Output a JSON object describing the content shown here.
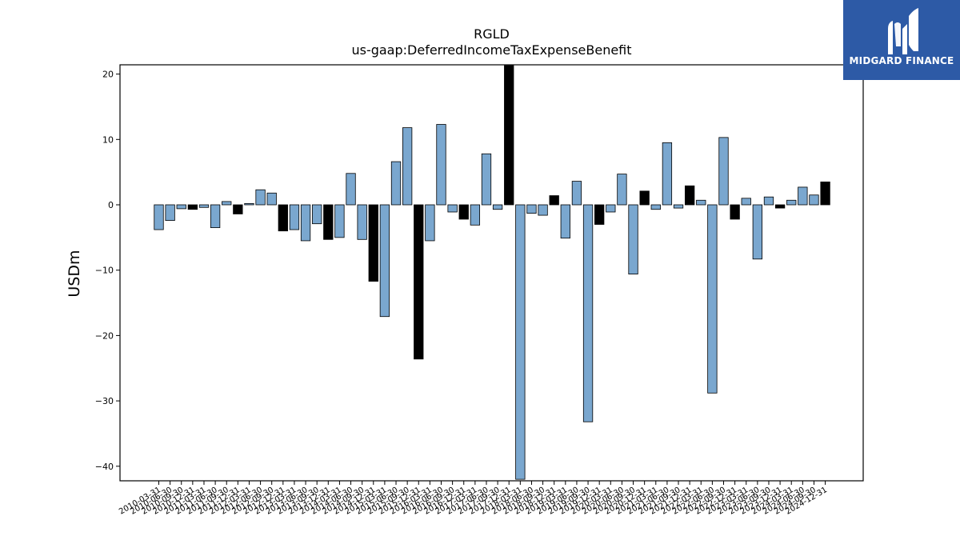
{
  "brand": {
    "name": "MIDGARD FINANCE",
    "logo_icon": "midgard-m-logo-icon",
    "bg_color": "#2d5aa6"
  },
  "chart_data": {
    "type": "bar",
    "title": "RGLD",
    "subtitle": "us-gaap:DeferredIncomeTaxExpenseBenefit",
    "xlabel": "",
    "ylabel": "USDm",
    "ylim": [
      -42,
      21.3
    ],
    "yticks": [
      20,
      10,
      0,
      -10,
      -20,
      -30,
      -40
    ],
    "grid": false,
    "colors": {
      "primary": "#7aa7cf",
      "highlight": "#000000"
    },
    "categories": [
      "2010-03-31",
      "2010-06-30",
      "2010-09-30",
      "2010-12-31",
      "2011-03-31",
      "2011-06-30",
      "2011-09-30",
      "2011-12-31",
      "2012-03-31",
      "2012-06-30",
      "2012-09-30",
      "2012-12-31",
      "2013-03-31",
      "2013-06-30",
      "2013-09-30",
      "2013-12-31",
      "2014-03-31",
      "2014-06-30",
      "2014-09-30",
      "2014-12-31",
      "2015-03-31",
      "2015-06-30",
      "2015-09-30",
      "2015-12-31",
      "2016-03-31",
      "2016-06-30",
      "2016-09-30",
      "2016-12-31",
      "2017-03-31",
      "2017-06-30",
      "2017-09-30",
      "2017-12-31",
      "2018-03-31",
      "2018-06-30",
      "2018-09-30",
      "2018-12-31",
      "2019-03-31",
      "2019-06-30",
      "2019-09-30",
      "2019-12-31",
      "2020-03-31",
      "2020-06-30",
      "2020-09-30",
      "2020-12-31",
      "2021-03-31",
      "2021-06-30",
      "2021-09-30",
      "2021-12-31",
      "2022-03-31",
      "2022-06-30",
      "2022-09-30",
      "2022-12-31",
      "2023-03-31",
      "2023-06-30",
      "2023-09-30",
      "2023-12-31",
      "2024-03-31",
      "2024-06-30",
      "2024-09-30",
      "2024-12-31"
    ],
    "values": [
      -3.8,
      -2.4,
      -0.6,
      -0.7,
      -0.4,
      -3.5,
      0.5,
      -1.4,
      0.2,
      2.3,
      1.8,
      -4.0,
      -3.8,
      -5.5,
      -2.9,
      -5.3,
      -5.0,
      4.8,
      -5.3,
      -11.7,
      -17.1,
      6.6,
      11.8,
      -23.6,
      -5.5,
      12.3,
      -1.1,
      -2.2,
      -3.1,
      7.8,
      -0.7,
      21.3,
      -42.0,
      -1.3,
      -1.6,
      1.4,
      -5.1,
      3.6,
      -33.2,
      -3.0,
      -1.1,
      4.7,
      -10.6,
      2.1,
      -0.7,
      9.5,
      -0.5,
      2.9,
      0.7,
      -28.8,
      10.3,
      -2.2,
      1.0,
      -8.3,
      1.2,
      -0.5,
      0.7,
      2.7,
      1.5,
      3.5
    ],
    "highlight": [
      false,
      false,
      false,
      true,
      false,
      false,
      false,
      true,
      false,
      false,
      false,
      true,
      false,
      false,
      false,
      true,
      false,
      false,
      false,
      true,
      false,
      false,
      false,
      true,
      false,
      false,
      false,
      true,
      false,
      false,
      false,
      true,
      false,
      false,
      false,
      true,
      false,
      false,
      false,
      true,
      false,
      false,
      false,
      true,
      false,
      false,
      false,
      true,
      false,
      false,
      false,
      true,
      false,
      false,
      false,
      true,
      false,
      false,
      false,
      true
    ]
  }
}
